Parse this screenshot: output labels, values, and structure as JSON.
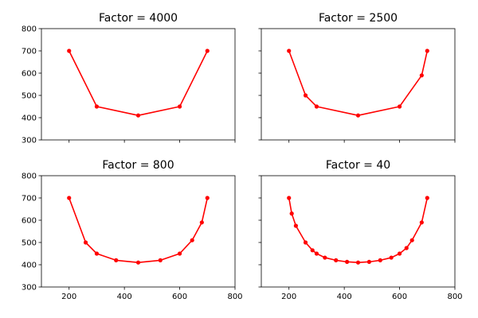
{
  "chart_data": [
    {
      "type": "line",
      "title": "Factor = 4000",
      "xlim": [
        100,
        800
      ],
      "ylim": [
        300,
        800
      ],
      "x_ticks": [
        "200",
        "400",
        "600",
        "800"
      ],
      "y_ticks": [
        "300",
        "400",
        "500",
        "600",
        "700",
        "800"
      ],
      "show_x_ticklabels": false,
      "show_y_ticklabels": true,
      "color": "#ff0000",
      "points": [
        [
          200,
          700
        ],
        [
          300,
          450
        ],
        [
          450,
          410
        ],
        [
          600,
          450
        ],
        [
          700,
          700
        ]
      ]
    },
    {
      "type": "line",
      "title": "Factor = 2500",
      "xlim": [
        100,
        800
      ],
      "ylim": [
        300,
        800
      ],
      "x_ticks": [
        "200",
        "400",
        "600",
        "800"
      ],
      "y_ticks": [
        "300",
        "400",
        "500",
        "600",
        "700",
        "800"
      ],
      "show_x_ticklabels": false,
      "show_y_ticklabels": false,
      "color": "#ff0000",
      "points": [
        [
          200,
          700
        ],
        [
          260,
          500
        ],
        [
          300,
          450
        ],
        [
          450,
          410
        ],
        [
          600,
          450
        ],
        [
          680,
          590
        ],
        [
          700,
          700
        ]
      ]
    },
    {
      "type": "line",
      "title": "Factor = 800",
      "xlim": [
        100,
        800
      ],
      "ylim": [
        300,
        800
      ],
      "x_ticks": [
        "200",
        "400",
        "600",
        "800"
      ],
      "y_ticks": [
        "300",
        "400",
        "500",
        "600",
        "700",
        "800"
      ],
      "show_x_ticklabels": true,
      "show_y_ticklabels": true,
      "color": "#ff0000",
      "points": [
        [
          200,
          700
        ],
        [
          260,
          500
        ],
        [
          300,
          450
        ],
        [
          370,
          420
        ],
        [
          450,
          410
        ],
        [
          530,
          420
        ],
        [
          600,
          450
        ],
        [
          645,
          510
        ],
        [
          680,
          590
        ],
        [
          700,
          700
        ]
      ]
    },
    {
      "type": "line",
      "title": "Factor = 40",
      "xlim": [
        100,
        800
      ],
      "ylim": [
        300,
        800
      ],
      "x_ticks": [
        "200",
        "400",
        "600",
        "800"
      ],
      "y_ticks": [
        "300",
        "400",
        "500",
        "600",
        "700",
        "800"
      ],
      "show_x_ticklabels": true,
      "show_y_ticklabels": false,
      "color": "#ff0000",
      "points": [
        [
          200,
          700
        ],
        [
          210,
          630
        ],
        [
          225,
          575
        ],
        [
          260,
          500
        ],
        [
          285,
          465
        ],
        [
          300,
          450
        ],
        [
          330,
          432
        ],
        [
          370,
          420
        ],
        [
          410,
          413
        ],
        [
          450,
          410
        ],
        [
          490,
          413
        ],
        [
          530,
          420
        ],
        [
          570,
          432
        ],
        [
          600,
          450
        ],
        [
          625,
          475
        ],
        [
          645,
          510
        ],
        [
          680,
          590
        ],
        [
          700,
          700
        ]
      ]
    }
  ]
}
